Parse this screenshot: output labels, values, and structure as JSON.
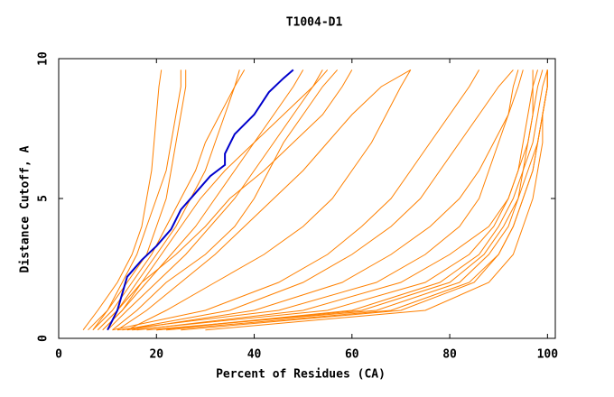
{
  "chart_data": {
    "type": "line",
    "title": "T1004-D1",
    "xlabel": "Percent of Residues (CA)",
    "ylabel": "Distance Cutoff, A",
    "xlim": [
      0,
      101.6
    ],
    "ylim": [
      0,
      10
    ],
    "xticks": [
      0,
      20,
      40,
      60,
      80,
      100
    ],
    "yticks": [
      0,
      5,
      10
    ],
    "series": [
      {
        "color": "#ff8000",
        "x": [
          5,
          8,
          12,
          15,
          17,
          18,
          19,
          19.5,
          20,
          20.5,
          21
        ],
        "y": [
          0.3,
          1,
          2,
          3,
          4,
          5,
          6,
          7,
          8,
          9,
          9.6
        ]
      },
      {
        "color": "#ff8000",
        "x": [
          6,
          10,
          14,
          18,
          20,
          22,
          23,
          24,
          25,
          26,
          26
        ],
        "y": [
          0.3,
          1,
          2,
          3,
          4,
          5,
          6,
          7,
          8,
          9,
          9.6
        ]
      },
      {
        "color": "#ff8000",
        "x": [
          8,
          12,
          16,
          20,
          24,
          27,
          30,
          32,
          34,
          36,
          37
        ],
        "y": [
          0.3,
          1,
          2,
          3,
          4,
          5,
          6,
          7,
          8,
          9,
          9.6
        ]
      },
      {
        "color": "#ff8000",
        "x": [
          7,
          11,
          15,
          19,
          22,
          25,
          28,
          30,
          33,
          36,
          38
        ],
        "y": [
          0.3,
          1,
          2,
          3,
          4,
          5,
          6,
          7,
          8,
          9,
          9.6
        ]
      },
      {
        "color": "#ff8000",
        "x": [
          9,
          13,
          18,
          23,
          28,
          32,
          36,
          40,
          44,
          48,
          50
        ],
        "y": [
          0.3,
          1,
          2,
          3,
          4,
          5,
          6,
          7,
          8,
          9,
          9.6
        ]
      },
      {
        "color": "#ff8000",
        "x": [
          10,
          14,
          20,
          26,
          31,
          36,
          40,
          44,
          48,
          52,
          55
        ],
        "y": [
          0.3,
          1,
          2,
          3,
          4,
          5,
          6,
          7,
          8,
          9,
          9.6
        ]
      },
      {
        "color": "#ff8000",
        "x": [
          8,
          12,
          17,
          24,
          30,
          35,
          42,
          48,
          54,
          58,
          60
        ],
        "y": [
          0.3,
          1,
          2,
          3,
          4,
          5,
          6,
          7,
          8,
          9,
          9.6
        ]
      },
      {
        "color": "#ff8000",
        "x": [
          7,
          10,
          13,
          16,
          18,
          20,
          22,
          23,
          24,
          25,
          25
        ],
        "y": [
          0.3,
          1,
          2,
          3,
          4,
          5,
          6,
          7,
          8,
          9,
          9.6
        ]
      },
      {
        "color": "#ff8000",
        "x": [
          12,
          18,
          25,
          32,
          38,
          44,
          50,
          55,
          60,
          66,
          72
        ],
        "y": [
          0.3,
          1,
          2,
          3,
          4,
          5,
          6,
          7,
          8,
          9,
          9.6
        ]
      },
      {
        "color": "#ff8000",
        "x": [
          14,
          22,
          32,
          42,
          50,
          56,
          60,
          64,
          67,
          70,
          72
        ],
        "y": [
          0.3,
          1,
          2,
          3,
          4,
          5,
          6,
          7,
          8,
          9,
          9.6
        ]
      },
      {
        "color": "#ff8000",
        "x": [
          11,
          16,
          22,
          30,
          36,
          40,
          43,
          46,
          50,
          54,
          57
        ],
        "y": [
          0.3,
          1,
          2,
          3,
          4,
          5,
          6,
          7,
          8,
          9,
          9.6
        ]
      },
      {
        "color": "#ff8000",
        "x": [
          9,
          13,
          17,
          21,
          25,
          29,
          34,
          40,
          46,
          52,
          54
        ],
        "y": [
          0.3,
          1,
          2,
          3,
          4,
          5,
          6,
          7,
          8,
          9,
          9.6
        ]
      },
      {
        "color": "#ff8000",
        "x": [
          20,
          60,
          78,
          86,
          90,
          93,
          95,
          97,
          98,
          99,
          100
        ],
        "y": [
          0.3,
          1,
          2,
          3,
          4,
          5,
          6,
          7,
          8,
          9,
          9.6
        ]
      },
      {
        "color": "#ff8000",
        "x": [
          15,
          55,
          75,
          84,
          89,
          92,
          94,
          96,
          97,
          98,
          99
        ],
        "y": [
          0.3,
          1,
          2,
          3,
          4,
          5,
          6,
          7,
          8,
          9,
          9.6
        ]
      },
      {
        "color": "#ff8000",
        "x": [
          18,
          65,
          82,
          88,
          92,
          94,
          96,
          98,
          99,
          100,
          100
        ],
        "y": [
          0.3,
          1,
          2,
          3,
          4,
          5,
          6,
          7,
          8,
          9,
          9.6
        ]
      },
      {
        "color": "#ff8000",
        "x": [
          25,
          70,
          85,
          90,
          93,
          95,
          97,
          98,
          99,
          100,
          100
        ],
        "y": [
          0.3,
          1,
          2,
          3,
          4,
          5,
          6,
          7,
          8,
          9,
          9.6
        ]
      },
      {
        "color": "#ff8000",
        "x": [
          12,
          45,
          65,
          75,
          82,
          86,
          88,
          90,
          92,
          93,
          94
        ],
        "y": [
          0.3,
          1,
          2,
          3,
          4,
          5,
          6,
          7,
          8,
          9,
          9.6
        ]
      },
      {
        "color": "#ff8000",
        "x": [
          14,
          40,
          58,
          68,
          76,
          82,
          86,
          89,
          92,
          94,
          95
        ],
        "y": [
          0.3,
          1,
          2,
          3,
          4,
          5,
          6,
          7,
          8,
          9,
          9.6
        ]
      },
      {
        "color": "#ff8000",
        "x": [
          16,
          50,
          70,
          80,
          88,
          92,
          94,
          95,
          96,
          97,
          97
        ],
        "y": [
          0.3,
          1,
          2,
          3,
          4,
          5,
          6,
          7,
          8,
          9,
          9.6
        ]
      },
      {
        "color": "#ff8000",
        "x": [
          13,
          35,
          50,
          60,
          68,
          74,
          78,
          82,
          86,
          90,
          93
        ],
        "y": [
          0.3,
          1,
          2,
          3,
          4,
          5,
          6,
          7,
          8,
          9,
          9.6
        ]
      },
      {
        "color": "#ff8000",
        "x": [
          20,
          62,
          80,
          87,
          91,
          94,
          95,
          96,
          97,
          97,
          98
        ],
        "y": [
          0.3,
          1,
          2,
          3,
          4,
          5,
          6,
          7,
          8,
          9,
          9.6
        ]
      },
      {
        "color": "#ff8000",
        "x": [
          30,
          75,
          88,
          93,
          95,
          97,
          98,
          99,
          99,
          100,
          100
        ],
        "y": [
          0.3,
          1,
          2,
          3,
          4,
          5,
          6,
          7,
          8,
          9,
          9.6
        ]
      },
      {
        "color": "#ff8000",
        "x": [
          11,
          30,
          45,
          55,
          62,
          68,
          72,
          76,
          80,
          84,
          86
        ],
        "y": [
          0.3,
          1,
          2,
          3,
          4,
          5,
          6,
          7,
          8,
          9,
          9.6
        ]
      },
      {
        "color": "#ff8000",
        "x": [
          22,
          68,
          84,
          90,
          93,
          95,
          97,
          98,
          99,
          100,
          100
        ],
        "y": [
          0.3,
          1,
          2,
          3,
          4,
          5,
          6,
          7,
          8,
          9,
          9.6
        ]
      },
      {
        "color": "#0000cc",
        "x": [
          10,
          12,
          14,
          17,
          20,
          23,
          25,
          28,
          31,
          34,
          34,
          36,
          40,
          43,
          46,
          48
        ],
        "y": [
          0.3,
          1,
          2.2,
          2.8,
          3.3,
          3.9,
          4.6,
          5.2,
          5.8,
          6.2,
          6.6,
          7.3,
          8,
          8.8,
          9.3,
          9.6
        ]
      }
    ]
  }
}
